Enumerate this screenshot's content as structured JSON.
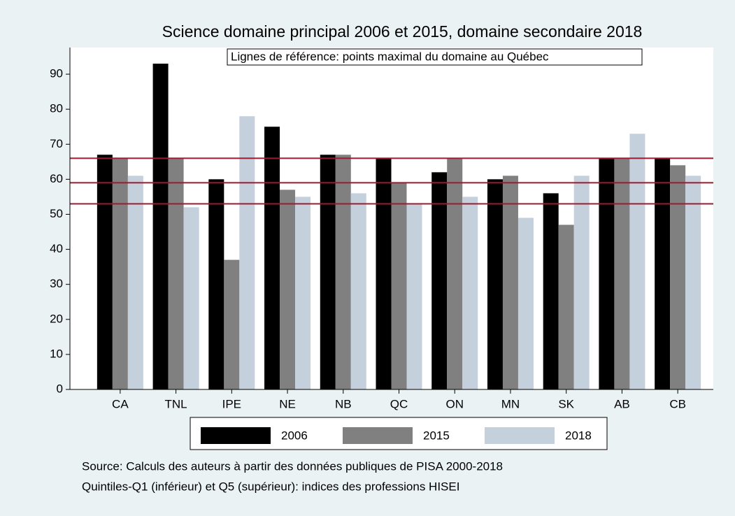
{
  "chart_data": {
    "type": "bar",
    "title": "Science domaine principal 2006 et 2015, domaine secondaire 2018",
    "annotation": "Lignes de référence: points maximal du domaine au Québec",
    "categories": [
      "CA",
      "TNL",
      "IPE",
      "NE",
      "NB",
      "QC",
      "ON",
      "MN",
      "SK",
      "AB",
      "CB"
    ],
    "series": [
      {
        "name": "2006",
        "color": "#000000",
        "values": [
          67,
          93,
          60,
          75,
          67,
          66,
          62,
          60,
          56,
          66,
          66
        ]
      },
      {
        "name": "2015",
        "color": "#808080",
        "values": [
          66,
          66,
          37,
          57,
          67,
          59,
          66,
          61,
          47,
          66,
          64
        ]
      },
      {
        "name": "2018",
        "color": "#c5d0dd",
        "values": [
          61,
          52,
          78,
          55,
          56,
          53,
          55,
          49,
          61,
          73,
          61
        ]
      }
    ],
    "reference_lines": [
      66,
      59,
      53
    ],
    "reference_color": "#9b1b30",
    "ylim": [
      0,
      97.6
    ],
    "yticks": [
      0,
      10,
      20,
      30,
      40,
      50,
      60,
      70,
      80,
      90
    ],
    "notes": [
      "Source: Calculs des auteurs à partir des données publiques de PISA 2000-2018",
      "Quintiles-Q1 (inférieur) et Q5 (supérieur): indices des professions HISEI"
    ]
  }
}
